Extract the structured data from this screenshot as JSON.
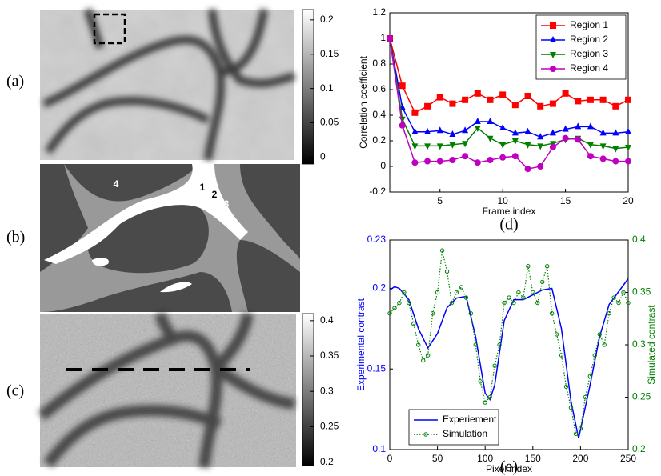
{
  "chart_data": [
    {
      "type": "image",
      "label": "(a)",
      "colorbar": {
        "lim": [
          -0.01,
          0.215
        ],
        "ticks": [
          0,
          0.05,
          0.1,
          0.15,
          0.2
        ]
      }
    },
    {
      "type": "image",
      "label": "(b)",
      "annotations": [
        "4",
        "1",
        "2",
        "3"
      ]
    },
    {
      "type": "image",
      "label": "(c)",
      "colorbar": {
        "lim": [
          0.195,
          0.41
        ],
        "ticks": [
          0.2,
          0.25,
          0.3,
          0.35,
          0.4
        ]
      }
    },
    {
      "type": "line",
      "label": "(d)",
      "xlabel": "Frame index",
      "ylabel": "Correlation  coefficient",
      "x": [
        1,
        2,
        3,
        4,
        5,
        6,
        7,
        8,
        9,
        10,
        11,
        12,
        13,
        14,
        15,
        16,
        17,
        18,
        19,
        20
      ],
      "xlim": [
        1,
        20
      ],
      "xticks": [
        5,
        10,
        15,
        20
      ],
      "ylim": [
        -0.2,
        1.2
      ],
      "yticks": [
        -0.2,
        0,
        0.2,
        0.4,
        0.6,
        0.8,
        1,
        1.2
      ],
      "legend": "upper right",
      "series": [
        {
          "name": "Region 1",
          "color": "#ff0000",
          "marker": "square",
          "values": [
            1,
            0.63,
            0.42,
            0.47,
            0.54,
            0.49,
            0.52,
            0.57,
            0.52,
            0.56,
            0.48,
            0.55,
            0.47,
            0.49,
            0.57,
            0.51,
            0.52,
            0.52,
            0.47,
            0.52
          ]
        },
        {
          "name": "Region 2",
          "color": "#0000ff",
          "marker": "triangle-up",
          "values": [
            1,
            0.46,
            0.27,
            0.27,
            0.28,
            0.25,
            0.28,
            0.35,
            0.35,
            0.3,
            0.26,
            0.27,
            0.23,
            0.26,
            0.29,
            0.31,
            0.31,
            0.26,
            0.26,
            0.27
          ]
        },
        {
          "name": "Region 3",
          "color": "#008000",
          "marker": "triangle-down",
          "values": [
            1,
            0.37,
            0.16,
            0.16,
            0.16,
            0.17,
            0.18,
            0.3,
            0.22,
            0.17,
            0.2,
            0.17,
            0.16,
            0.18,
            0.21,
            0.22,
            0.17,
            0.16,
            0.14,
            0.15
          ]
        },
        {
          "name": "Region 4",
          "color": "#c000c0",
          "marker": "circle",
          "values": [
            1,
            0.32,
            0.03,
            0.04,
            0.04,
            0.05,
            0.08,
            0.03,
            0.05,
            0.07,
            0.08,
            -0.02,
            0,
            0.15,
            0.22,
            0.21,
            0.08,
            0.06,
            0.04,
            0.04
          ]
        }
      ]
    },
    {
      "type": "line",
      "label": "(e)",
      "xlabel": "Pixel index",
      "ylabel": "Experimental contrast",
      "y2label": "Simulated contrast",
      "ylabel_color": "#0000ff",
      "y2label_color": "#008000",
      "xlim": [
        0,
        250
      ],
      "xticks": [
        0,
        50,
        100,
        150,
        200,
        250
      ],
      "ylim": [
        0.1,
        0.23
      ],
      "yticks": [
        0.1,
        0.15,
        0.2,
        0.23
      ],
      "y2lim": [
        0.2,
        0.4
      ],
      "y2ticks": [
        0.2,
        0.25,
        0.3,
        0.35,
        0.4
      ],
      "legend": "lower left",
      "series": [
        {
          "name": "Experiement",
          "color": "#0000ff",
          "marker": "none",
          "linestyle": "solid",
          "x": [
            0,
            5,
            10,
            20,
            30,
            40,
            50,
            60,
            70,
            80,
            90,
            100,
            105,
            110,
            120,
            130,
            140,
            150,
            160,
            170,
            180,
            190,
            198,
            210,
            220,
            230,
            240,
            250
          ],
          "values": [
            0.199,
            0.201,
            0.2,
            0.193,
            0.175,
            0.163,
            0.172,
            0.188,
            0.194,
            0.195,
            0.17,
            0.135,
            0.131,
            0.14,
            0.18,
            0.193,
            0.193,
            0.196,
            0.199,
            0.2,
            0.175,
            0.13,
            0.107,
            0.14,
            0.17,
            0.19,
            0.198,
            0.206
          ]
        },
        {
          "name": "Simulation",
          "color": "#008000",
          "marker": "open-circle",
          "linestyle": "dotted",
          "axis": "y2",
          "x": [
            0,
            5,
            10,
            15,
            20,
            25,
            30,
            35,
            40,
            45,
            50,
            55,
            60,
            65,
            70,
            75,
            80,
            85,
            90,
            95,
            100,
            105,
            110,
            115,
            120,
            125,
            130,
            135,
            140,
            145,
            150,
            155,
            160,
            165,
            170,
            175,
            180,
            185,
            190,
            195,
            200,
            205,
            210,
            215,
            220,
            225,
            230,
            235,
            240,
            245,
            250
          ],
          "values": [
            0.33,
            0.335,
            0.34,
            0.35,
            0.34,
            0.32,
            0.3,
            0.285,
            0.29,
            0.33,
            0.35,
            0.39,
            0.37,
            0.34,
            0.35,
            0.355,
            0.345,
            0.33,
            0.3,
            0.265,
            0.245,
            0.25,
            0.28,
            0.3,
            0.34,
            0.345,
            0.34,
            0.35,
            0.345,
            0.375,
            0.35,
            0.34,
            0.36,
            0.375,
            0.33,
            0.31,
            0.29,
            0.26,
            0.24,
            0.215,
            0.22,
            0.25,
            0.27,
            0.29,
            0.31,
            0.3,
            0.33,
            0.345,
            0.34,
            0.35,
            0.34
          ]
        }
      ]
    }
  ]
}
